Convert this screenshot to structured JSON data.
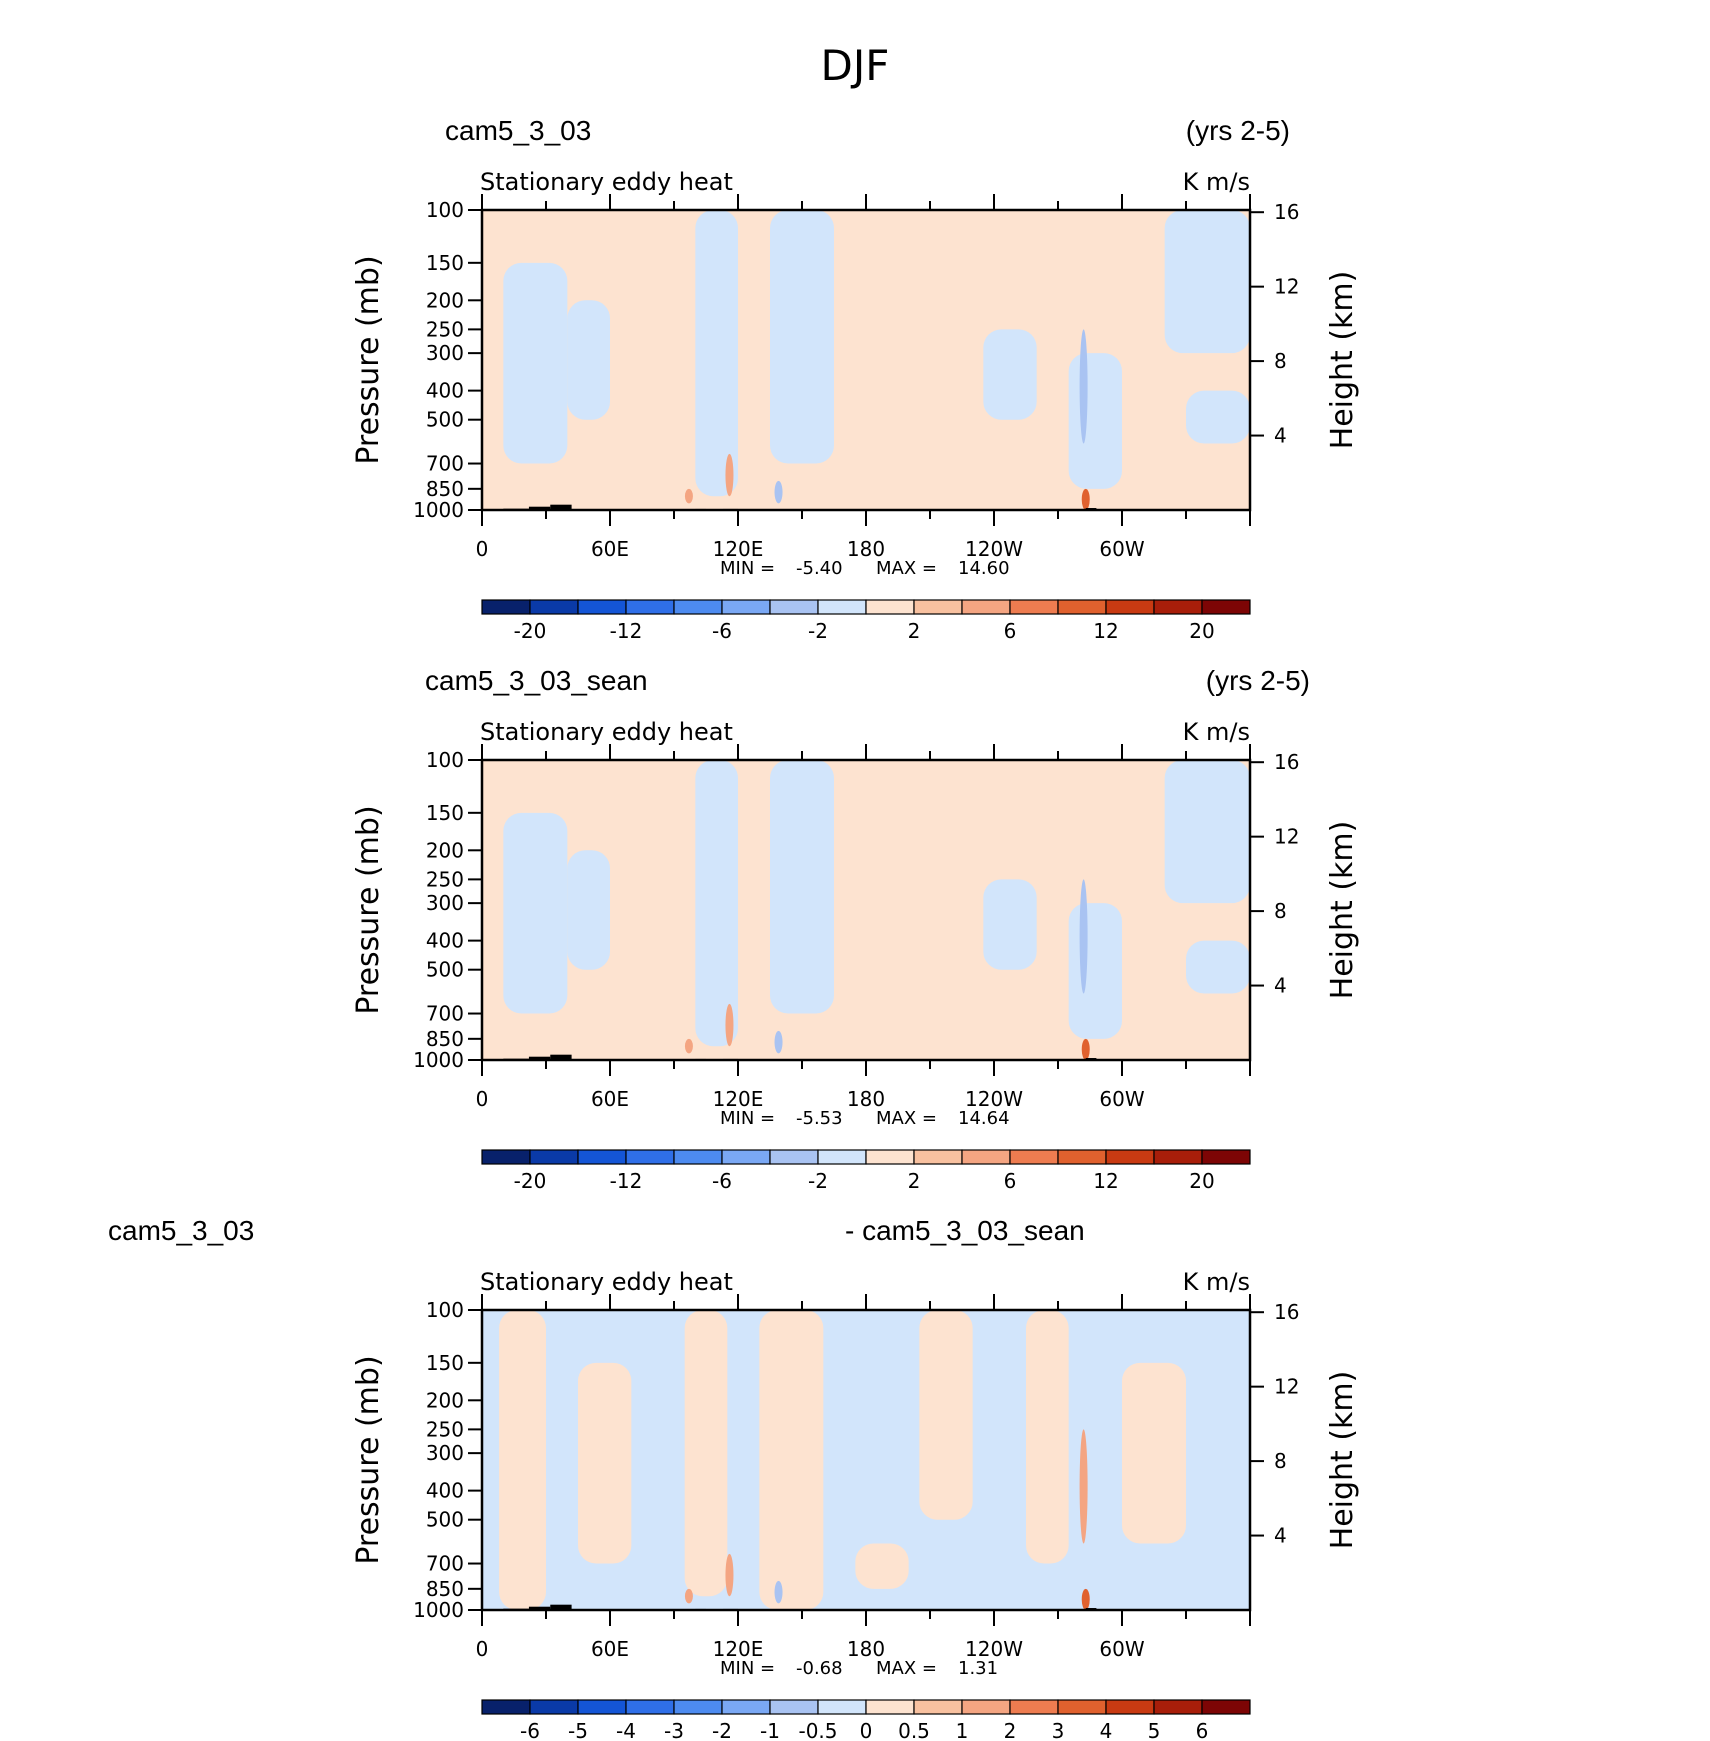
{
  "page_title": "DJF",
  "colors": {
    "neg_light": "#d2e5fb",
    "pos_light": "#fde3d0",
    "pos_medium": "#f4a582",
    "pos_strong": "#e0612e",
    "neg_medium": "#a9c3f2",
    "topo": "#000000",
    "frame": "#000000"
  },
  "diff_left_label": "cam5_3_03",
  "chart_data": [
    {
      "type": "heatmap",
      "case_name": "cam5_3_03",
      "years": "(yrs 2-5)",
      "variable": "Stationary eddy heat",
      "units": "K m/s",
      "ylabel_left": "Pressure (mb)",
      "ylabel_right": "Height (km)",
      "x_ticks": [
        "0",
        "60E",
        "120E",
        "180",
        "120W",
        "60W"
      ],
      "x_tick_longitudes": [
        0,
        60,
        120,
        180,
        240,
        300
      ],
      "xlim": [
        0,
        360
      ],
      "y_ticks_pressure": [
        100,
        150,
        200,
        250,
        300,
        400,
        500,
        700,
        850,
        1000
      ],
      "y_ticks_height": [
        16,
        12,
        8,
        4
      ],
      "ylim_pressure": [
        1000,
        100
      ],
      "y_scale": "log",
      "stats": {
        "min_label": "MIN =",
        "min": "-5.40",
        "max_label": "MAX =",
        "max": "14.60"
      },
      "colorbar_labels": [
        "-20",
        "-12",
        "-6",
        "-2",
        "2",
        "6",
        "12",
        "20"
      ],
      "colorbar_colors": [
        "#08216b",
        "#0a3aa8",
        "#1455d6",
        "#2f6fe8",
        "#4d8bf0",
        "#7aa8f4",
        "#a9c3f2",
        "#d2e5fb",
        "#fde3d0",
        "#f8c1a0",
        "#f4a582",
        "#ee7c50",
        "#e0612e",
        "#c93a12",
        "#a81e0a",
        "#7d0505"
      ]
    },
    {
      "type": "heatmap",
      "case_name": "cam5_3_03_sean",
      "years": "(yrs 2-5)",
      "variable": "Stationary eddy heat",
      "units": "K m/s",
      "ylabel_left": "Pressure (mb)",
      "ylabel_right": "Height (km)",
      "x_ticks": [
        "0",
        "60E",
        "120E",
        "180",
        "120W",
        "60W"
      ],
      "x_tick_longitudes": [
        0,
        60,
        120,
        180,
        240,
        300
      ],
      "xlim": [
        0,
        360
      ],
      "y_ticks_pressure": [
        100,
        150,
        200,
        250,
        300,
        400,
        500,
        700,
        850,
        1000
      ],
      "y_ticks_height": [
        16,
        12,
        8,
        4
      ],
      "ylim_pressure": [
        1000,
        100
      ],
      "y_scale": "log",
      "stats": {
        "min_label": "MIN =",
        "min": "-5.53",
        "max_label": "MAX =",
        "max": "14.64"
      },
      "colorbar_labels": [
        "-20",
        "-12",
        "-6",
        "-2",
        "2",
        "6",
        "12",
        "20"
      ],
      "colorbar_colors": [
        "#08216b",
        "#0a3aa8",
        "#1455d6",
        "#2f6fe8",
        "#4d8bf0",
        "#7aa8f4",
        "#a9c3f2",
        "#d2e5fb",
        "#fde3d0",
        "#f8c1a0",
        "#f4a582",
        "#ee7c50",
        "#e0612e",
        "#c93a12",
        "#a81e0a",
        "#7d0505"
      ]
    },
    {
      "type": "heatmap",
      "case_name": "- cam5_3_03_sean",
      "years": "",
      "variable": "Stationary eddy heat",
      "units": "K m/s",
      "ylabel_left": "Pressure (mb)",
      "ylabel_right": "Height (km)",
      "x_ticks": [
        "0",
        "60E",
        "120E",
        "180",
        "120W",
        "60W"
      ],
      "x_tick_longitudes": [
        0,
        60,
        120,
        180,
        240,
        300
      ],
      "xlim": [
        0,
        360
      ],
      "y_ticks_pressure": [
        100,
        150,
        200,
        250,
        300,
        400,
        500,
        700,
        850,
        1000
      ],
      "y_ticks_height": [
        16,
        12,
        8,
        4
      ],
      "ylim_pressure": [
        1000,
        100
      ],
      "y_scale": "log",
      "stats": {
        "min_label": "MIN =",
        "min": "-0.68",
        "max_label": "MAX =",
        "max": "1.31"
      },
      "colorbar_labels": [
        "-6",
        "-5",
        "-4",
        "-3",
        "-2",
        "-1",
        "-0.5",
        "0",
        "0.5",
        "1",
        "2",
        "3",
        "4",
        "5",
        "6"
      ],
      "colorbar_colors": [
        "#08216b",
        "#0a3aa8",
        "#1455d6",
        "#2f6fe8",
        "#4d8bf0",
        "#7aa8f4",
        "#a9c3f2",
        "#d2e5fb",
        "#fde3d0",
        "#f8c1a0",
        "#f4a582",
        "#ee7c50",
        "#e0612e",
        "#c93a12",
        "#a81e0a",
        "#7d0505"
      ]
    }
  ]
}
